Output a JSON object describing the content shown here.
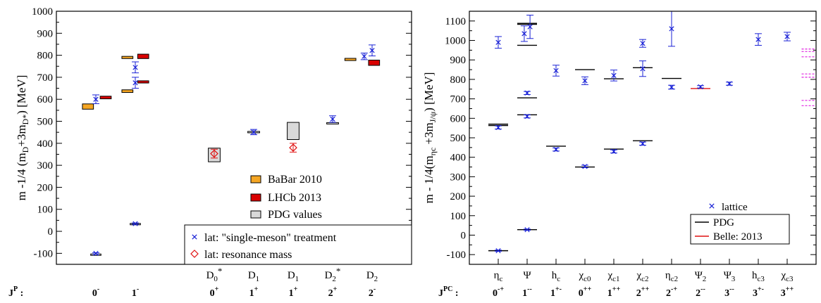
{
  "chart_data": [
    {
      "type": "scatter",
      "ylabel": "m -1/4 (m_D+3m_D*)  [MeV]",
      "ylim": [
        -150,
        1000
      ],
      "yticks": [
        -100,
        0,
        100,
        200,
        300,
        400,
        500,
        600,
        700,
        800,
        900,
        1000
      ],
      "grid": false,
      "legend_position": "bottom-right",
      "legend": {
        "babar": "BaBar 2010",
        "lhcb": "LHCb 2013",
        "pdg": "PDG values",
        "lat_single": "lat: \"single-meson\" treatment",
        "lat_res": "lat: resonance mass"
      },
      "x_state_labels": [
        {
          "x": 4.0,
          "name": "D",
          "sub": "0",
          "sup": "*",
          "jp": "0",
          "jp_sup": "+"
        },
        {
          "x": 5.0,
          "name": "D",
          "sub": "1",
          "sup": "",
          "jp": "1",
          "jp_sup": "+"
        },
        {
          "x": 6.0,
          "name": "D",
          "sub": "1",
          "sup": "",
          "jp": "1",
          "jp_sup": "+"
        },
        {
          "x": 7.0,
          "name": "D",
          "sub": "2",
          "sup": "*",
          "jp": "2",
          "jp_sup": "+"
        },
        {
          "x": 8.0,
          "name": "D",
          "sub": "2",
          "sup": "",
          "jp": "2",
          "jp_sup": "-"
        }
      ],
      "jp_prefix": {
        "main": "J",
        "sup": "P",
        "colon": ":"
      },
      "jp_extra": [
        {
          "x": 1.0,
          "jp": "0",
          "jp_sup": "-"
        },
        {
          "x": 2.0,
          "jp": "1",
          "jp_sup": "-"
        }
      ],
      "babar_boxes": [
        {
          "x": 0.8,
          "w": 0.28,
          "center": 567,
          "half": 12
        },
        {
          "x": 1.8,
          "w": 0.28,
          "center": 790,
          "half": 5
        },
        {
          "x": 1.8,
          "w": 0.28,
          "center": 637,
          "half": 6
        },
        {
          "x": 7.45,
          "w": 0.28,
          "center": 781,
          "half": 5
        }
      ],
      "lhcb_boxes": [
        {
          "x": 1.25,
          "w": 0.28,
          "center": 608,
          "half": 6
        },
        {
          "x": 2.2,
          "w": 0.28,
          "center": 795,
          "half": 10
        },
        {
          "x": 2.2,
          "w": 0.28,
          "center": 679,
          "half": 5
        },
        {
          "x": 8.05,
          "w": 0.28,
          "center": 766,
          "half": 12
        }
      ],
      "pdg_boxes": [
        {
          "x": 4.0,
          "w": 0.3,
          "center": 347,
          "half": 31
        },
        {
          "x": 5.0,
          "w": 0.3,
          "center": 451,
          "half": 3
        },
        {
          "x": 6.0,
          "w": 0.3,
          "center": 456,
          "half": 39
        },
        {
          "x": 7.0,
          "w": 0.3,
          "center": 492,
          "half": 2
        },
        {
          "x": 1.0,
          "w": 0.26,
          "center": -104,
          "half": 1
        },
        {
          "x": 2.0,
          "w": 0.26,
          "center": 35,
          "half": 1
        }
      ],
      "lat_single": [
        {
          "x": 1.0,
          "y": 600,
          "err": 20
        },
        {
          "x": 1.0,
          "y": -100,
          "err": 3
        },
        {
          "x": 2.0,
          "y": 745,
          "err": 25
        },
        {
          "x": 2.0,
          "y": 675,
          "err": 25
        },
        {
          "x": 2.0,
          "y": 35,
          "err": 3
        },
        {
          "x": 5.0,
          "y": 451,
          "err": 12
        },
        {
          "x": 7.0,
          "y": 510,
          "err": 15
        },
        {
          "x": 7.8,
          "y": 795,
          "err": 15
        },
        {
          "x": 8.0,
          "y": 822,
          "err": 25
        }
      ],
      "lat_res": [
        {
          "x": 4.0,
          "y": 353,
          "err": 20
        },
        {
          "x": 6.0,
          "y": 380,
          "err": 20
        }
      ]
    },
    {
      "type": "scatter",
      "ylabel": "m - 1/4(m_ηc +3m_J/ψ)  [MeV]",
      "ylim": [
        -150,
        1150
      ],
      "yticks": [
        -100,
        0,
        100,
        200,
        300,
        400,
        500,
        600,
        700,
        800,
        900,
        1000,
        1100
      ],
      "grid": false,
      "legend_position": "bottom-right",
      "legend": {
        "lattice": "lattice",
        "pdg": "PDG",
        "belle": "Belle: 2013"
      },
      "jpc_prefix": {
        "main": "J",
        "sup": "PC",
        "colon": ":"
      },
      "states": [
        {
          "x": 1,
          "name": "η",
          "sub": "c",
          "jpc": "0",
          "jpc_sup": "-+"
        },
        {
          "x": 2,
          "name": "Ψ",
          "sub": "",
          "jpc": "1",
          "jpc_sup": "--"
        },
        {
          "x": 3,
          "name": "h",
          "sub": "c",
          "jpc": "1",
          "jpc_sup": "+-"
        },
        {
          "x": 4,
          "name": "χ",
          "sub": "c0",
          "jpc": "0",
          "jpc_sup": "++"
        },
        {
          "x": 5,
          "name": "χ",
          "sub": "c1",
          "jpc": "1",
          "jpc_sup": "++"
        },
        {
          "x": 6,
          "name": "χ",
          "sub": "c2",
          "jpc": "2",
          "jpc_sup": "++"
        },
        {
          "x": 7,
          "name": "η",
          "sub": "c2",
          "jpc": "2",
          "jpc_sup": "-+"
        },
        {
          "x": 8,
          "name": "Ψ",
          "sub": "2",
          "jpc": "2",
          "jpc_sup": "--"
        },
        {
          "x": 9,
          "name": "Ψ",
          "sub": "3",
          "jpc": "3",
          "jpc_sup": "--"
        },
        {
          "x": 10,
          "name": "h",
          "sub": "c3",
          "jpc": "3",
          "jpc_sup": "+-"
        },
        {
          "x": 11,
          "name": "χ",
          "sub": "c3",
          "jpc": "3",
          "jpc_sup": "++"
        }
      ],
      "lattice": [
        {
          "x": 1,
          "y": 990,
          "err": 30
        },
        {
          "x": 1,
          "y": 553,
          "err": 8
        },
        {
          "x": 1,
          "y": -80,
          "err": 3
        },
        {
          "x": 1.9,
          "y": 1035,
          "err": 40
        },
        {
          "x": 2.1,
          "y": 1070,
          "err": 60
        },
        {
          "x": 2,
          "y": 730,
          "err": 8
        },
        {
          "x": 2,
          "y": 610,
          "err": 8
        },
        {
          "x": 2,
          "y": 28,
          "err": 3
        },
        {
          "x": 3,
          "y": 845,
          "err": 28
        },
        {
          "x": 3,
          "y": 440,
          "err": 8
        },
        {
          "x": 4,
          "y": 793,
          "err": 20
        },
        {
          "x": 4,
          "y": 353,
          "err": 6
        },
        {
          "x": 5,
          "y": 820,
          "err": 28
        },
        {
          "x": 5,
          "y": 430,
          "err": 8
        },
        {
          "x": 6,
          "y": 985,
          "err": 20
        },
        {
          "x": 6,
          "y": 855,
          "err": 40
        },
        {
          "x": 6,
          "y": 470,
          "err": 8
        },
        {
          "x": 7,
          "y": 1060,
          "err": 90
        },
        {
          "x": 7,
          "y": 760,
          "err": 10
        },
        {
          "x": 8,
          "y": 762,
          "err": 6
        },
        {
          "x": 9,
          "y": 778,
          "err": 8
        },
        {
          "x": 10,
          "y": 1005,
          "err": 30
        },
        {
          "x": 11,
          "y": 1020,
          "err": 22
        }
      ],
      "pdg_lines": [
        {
          "x": 1,
          "y": 570
        },
        {
          "x": 1,
          "y": 563
        },
        {
          "x": 1,
          "y": -80
        },
        {
          "x": 2,
          "y": 1088
        },
        {
          "x": 2,
          "y": 1083
        },
        {
          "x": 2,
          "y": 975
        },
        {
          "x": 2,
          "y": 705
        },
        {
          "x": 2,
          "y": 618
        },
        {
          "x": 2,
          "y": 28
        },
        {
          "x": 3,
          "y": 457
        },
        {
          "x": 4,
          "y": 850
        },
        {
          "x": 4,
          "y": 350
        },
        {
          "x": 5,
          "y": 803
        },
        {
          "x": 5,
          "y": 442
        },
        {
          "x": 6,
          "y": 860
        },
        {
          "x": 6,
          "y": 485
        },
        {
          "x": 7,
          "y": 805
        }
      ],
      "belle_lines": [
        {
          "x": 8,
          "y": 753
        }
      ],
      "magenta_dotted": [
        956,
        943,
        916,
        828,
        811,
        692,
        665
      ]
    }
  ]
}
